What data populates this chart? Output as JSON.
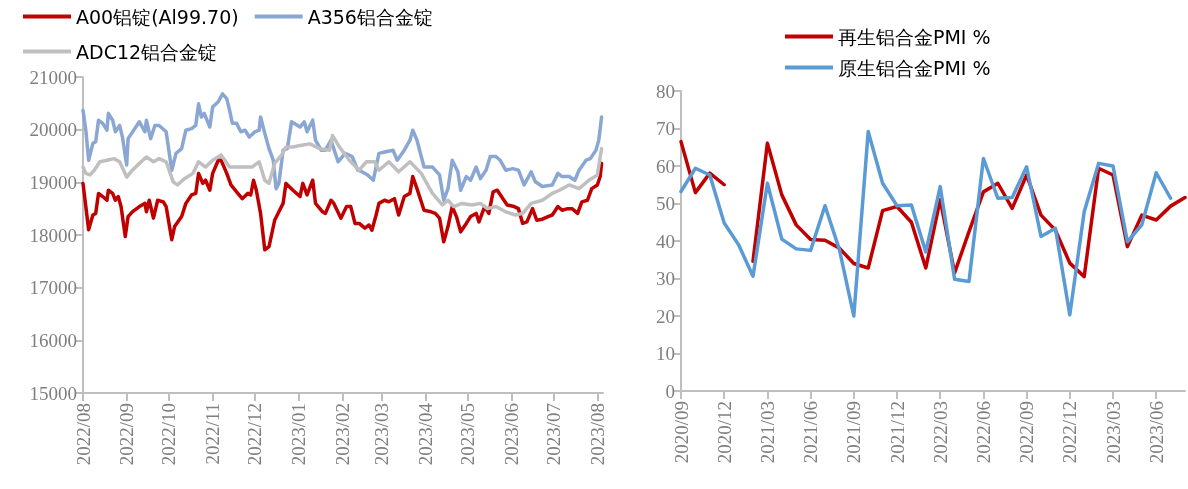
{
  "chart_data": [
    {
      "type": "line",
      "legend": "top",
      "marker": "none",
      "xlim": [
        "2022-08-01",
        "2023-08-05"
      ],
      "xticks": [
        {
          "value": "2022-08-01",
          "label": "2022/08"
        },
        {
          "value": "2022-09-01",
          "label": "2022/09"
        },
        {
          "value": "2022-10-01",
          "label": "2022/10"
        },
        {
          "value": "2022-11-01",
          "label": "2022/11"
        },
        {
          "value": "2022-12-01",
          "label": "2022/12"
        },
        {
          "value": "2023-01-01",
          "label": "2023/01"
        },
        {
          "value": "2023-02-01",
          "label": "2023/02"
        },
        {
          "value": "2023-03-01",
          "label": "2023/03"
        },
        {
          "value": "2023-04-01",
          "label": "2023/04"
        },
        {
          "value": "2023-05-01",
          "label": "2023/05"
        },
        {
          "value": "2023-06-01",
          "label": "2023/06"
        },
        {
          "value": "2023-07-01",
          "label": "2023/07"
        },
        {
          "value": "2023-08-01",
          "label": "2023/08"
        }
      ],
      "ylim": [
        15000,
        21000
      ],
      "yticks": [
        15000,
        16000,
        17000,
        18000,
        19000,
        20000,
        21000
      ],
      "series": [
        {
          "name": "A00铝锭(Al99.70)",
          "color": "#c00000",
          "x": [
            "2022-08-01",
            "2022-08-03",
            "2022-08-05",
            "2022-08-08",
            "2022-08-10",
            "2022-08-12",
            "2022-08-15",
            "2022-08-18",
            "2022-08-19",
            "2022-08-22",
            "2022-08-24",
            "2022-08-26",
            "2022-08-28",
            "2022-08-31",
            "2022-09-02",
            "2022-09-05",
            "2022-09-10",
            "2022-09-14",
            "2022-09-15",
            "2022-09-17",
            "2022-09-20",
            "2022-09-23",
            "2022-09-27",
            "2022-09-29",
            "2022-10-03",
            "2022-10-05",
            "2022-10-10",
            "2022-10-13",
            "2022-10-17",
            "2022-10-20",
            "2022-10-22",
            "2022-10-25",
            "2022-10-27",
            "2022-10-30",
            "2022-11-01",
            "2022-11-05",
            "2022-11-07",
            "2022-11-11",
            "2022-11-14",
            "2022-11-18",
            "2022-11-22",
            "2022-11-26",
            "2022-11-28",
            "2022-11-30",
            "2022-12-02",
            "2022-12-05",
            "2022-12-08",
            "2022-12-11",
            "2022-12-15",
            "2022-12-18",
            "2022-12-21",
            "2022-12-23",
            "2022-12-28",
            "2023-01-02",
            "2023-01-04",
            "2023-01-07",
            "2023-01-11",
            "2023-01-13",
            "2023-01-18",
            "2023-01-20",
            "2023-01-24",
            "2023-01-26",
            "2023-01-31",
            "2023-02-04",
            "2023-02-07",
            "2023-02-10",
            "2023-02-13",
            "2023-02-17",
            "2023-02-20",
            "2023-02-22",
            "2023-02-25",
            "2023-02-27",
            "2023-03-03",
            "2023-03-06",
            "2023-03-10",
            "2023-03-13",
            "2023-03-17",
            "2023-03-21",
            "2023-03-23",
            "2023-03-26",
            "2023-03-31",
            "2023-04-05",
            "2023-04-08",
            "2023-04-11",
            "2023-04-14",
            "2023-04-17",
            "2023-04-20",
            "2023-04-23",
            "2023-04-26",
            "2023-04-30",
            "2023-05-03",
            "2023-05-07",
            "2023-05-09",
            "2023-05-13",
            "2023-05-16",
            "2023-05-19",
            "2023-05-22",
            "2023-05-26",
            "2023-05-29",
            "2023-06-03",
            "2023-06-06",
            "2023-06-09",
            "2023-06-12",
            "2023-06-16",
            "2023-06-19",
            "2023-06-23",
            "2023-06-27",
            "2023-06-30",
            "2023-07-04",
            "2023-07-07",
            "2023-07-11",
            "2023-07-14",
            "2023-07-18",
            "2023-07-21",
            "2023-07-25",
            "2023-07-28",
            "2023-08-01",
            "2023-08-03",
            "2023-08-04"
          ],
          "values": [
            18980,
            18540,
            18100,
            18380,
            18410,
            18790,
            18730,
            18660,
            18850,
            18790,
            18660,
            18730,
            18540,
            17970,
            18350,
            18440,
            18540,
            18600,
            18440,
            18660,
            18320,
            18660,
            18630,
            18540,
            17910,
            18160,
            18350,
            18600,
            18760,
            18790,
            19170,
            18980,
            19040,
            18850,
            19170,
            19420,
            19420,
            19170,
            18950,
            18820,
            18690,
            18790,
            18760,
            19040,
            18850,
            18410,
            17720,
            17780,
            18280,
            18440,
            18600,
            18980,
            18850,
            18730,
            18980,
            18760,
            19040,
            18600,
            18440,
            18410,
            18660,
            18600,
            18320,
            18540,
            18540,
            18220,
            18220,
            18130,
            18190,
            18090,
            18380,
            18600,
            18660,
            18630,
            18690,
            18380,
            18730,
            18790,
            19110,
            18880,
            18470,
            18440,
            18410,
            18320,
            17870,
            18160,
            18540,
            18350,
            18060,
            18220,
            18350,
            18410,
            18250,
            18540,
            18410,
            18820,
            18850,
            18690,
            18570,
            18540,
            18500,
            18220,
            18250,
            18500,
            18280,
            18300,
            18350,
            18380,
            18540,
            18470,
            18500,
            18500,
            18410,
            18630,
            18660,
            18880,
            18950,
            19110,
            19360
          ]
        },
        {
          "name": "A356铝合金锭",
          "color": "#8aa6d2",
          "x": [
            "2022-08-01",
            "2022-08-03",
            "2022-08-05",
            "2022-08-08",
            "2022-08-10",
            "2022-08-12",
            "2022-08-15",
            "2022-08-18",
            "2022-08-19",
            "2022-08-22",
            "2022-08-24",
            "2022-08-27",
            "2022-08-29",
            "2022-09-01",
            "2022-09-02",
            "2022-09-10",
            "2022-09-14",
            "2022-09-15",
            "2022-09-18",
            "2022-09-21",
            "2022-09-24",
            "2022-09-29",
            "2022-10-03",
            "2022-10-06",
            "2022-10-10",
            "2022-10-13",
            "2022-10-17",
            "2022-10-20",
            "2022-10-22",
            "2022-10-24",
            "2022-10-26",
            "2022-10-30",
            "2022-11-01",
            "2022-11-05",
            "2022-11-08",
            "2022-11-11",
            "2022-11-13",
            "2022-11-15",
            "2022-11-18",
            "2022-11-21",
            "2022-11-24",
            "2022-11-27",
            "2022-12-01",
            "2022-12-04",
            "2022-12-05",
            "2022-12-08",
            "2022-12-11",
            "2022-12-14",
            "2022-12-16",
            "2022-12-18",
            "2022-12-21",
            "2022-12-24",
            "2022-12-27",
            "2023-01-02",
            "2023-01-05",
            "2023-01-07",
            "2023-01-11",
            "2023-01-13",
            "2023-01-17",
            "2023-01-20",
            "2023-01-24",
            "2023-01-29",
            "2023-02-03",
            "2023-02-08",
            "2023-02-12",
            "2023-02-15",
            "2023-02-19",
            "2023-02-23",
            "2023-02-27",
            "2023-03-04",
            "2023-03-09",
            "2023-03-12",
            "2023-03-17",
            "2023-03-21",
            "2023-03-23",
            "2023-03-26",
            "2023-03-31",
            "2023-04-06",
            "2023-04-11",
            "2023-04-14",
            "2023-04-17",
            "2023-04-20",
            "2023-04-24",
            "2023-04-26",
            "2023-04-30",
            "2023-05-03",
            "2023-05-07",
            "2023-05-10",
            "2023-05-14",
            "2023-05-17",
            "2023-05-21",
            "2023-05-24",
            "2023-05-28",
            "2023-06-02",
            "2023-06-06",
            "2023-06-10",
            "2023-06-15",
            "2023-06-18",
            "2023-06-23",
            "2023-06-30",
            "2023-07-04",
            "2023-07-07",
            "2023-07-12",
            "2023-07-16",
            "2023-07-19",
            "2023-07-24",
            "2023-07-27",
            "2023-07-31",
            "2023-08-02",
            "2023-08-04"
          ],
          "values": [
            20370,
            19990,
            19420,
            19740,
            19770,
            20180,
            20120,
            19990,
            20310,
            20180,
            19960,
            20080,
            19860,
            19330,
            19830,
            20150,
            19960,
            20180,
            19830,
            20080,
            20080,
            19960,
            19230,
            19550,
            19640,
            19990,
            20020,
            20080,
            20490,
            20240,
            20310,
            20050,
            20430,
            20530,
            20680,
            20590,
            20370,
            20120,
            20120,
            19960,
            19990,
            19860,
            19960,
            19990,
            20240,
            19930,
            19640,
            19420,
            18880,
            18980,
            19610,
            19640,
            20150,
            20050,
            20150,
            19960,
            20180,
            19800,
            19610,
            19610,
            19800,
            19390,
            19550,
            19490,
            19230,
            19200,
            19140,
            19040,
            19550,
            19580,
            19610,
            19420,
            19610,
            19800,
            19990,
            19800,
            19290,
            19290,
            19140,
            18660,
            18880,
            19420,
            19200,
            18850,
            19110,
            19040,
            19290,
            19070,
            19230,
            19490,
            19490,
            19420,
            19230,
            19260,
            19230,
            18950,
            19200,
            19010,
            18920,
            18950,
            19170,
            19110,
            19110,
            19040,
            19230,
            19420,
            19450,
            19610,
            19800,
            20240
          ]
        },
        {
          "name": "ADC12铝合金锭",
          "color": "#bfbfbf",
          "x": [
            "2022-08-01",
            "2022-08-03",
            "2022-08-06",
            "2022-08-09",
            "2022-08-13",
            "2022-08-18",
            "2022-08-23",
            "2022-08-27",
            "2022-09-01",
            "2022-09-05",
            "2022-09-10",
            "2022-09-15",
            "2022-09-20",
            "2022-09-24",
            "2022-09-29",
            "2022-10-04",
            "2022-10-07",
            "2022-10-12",
            "2022-10-18",
            "2022-10-22",
            "2022-10-27",
            "2022-11-01",
            "2022-11-07",
            "2022-11-13",
            "2022-11-20",
            "2022-11-29",
            "2022-12-04",
            "2022-12-08",
            "2022-12-11",
            "2022-12-15",
            "2022-12-20",
            "2022-12-23",
            "2022-12-28",
            "2023-01-02",
            "2023-01-09",
            "2023-01-16",
            "2023-01-23",
            "2023-01-25",
            "2023-01-30",
            "2023-02-06",
            "2023-02-13",
            "2023-02-18",
            "2023-02-24",
            "2023-02-27",
            "2023-03-06",
            "2023-03-13",
            "2023-03-21",
            "2023-03-29",
            "2023-04-06",
            "2023-04-13",
            "2023-04-17",
            "2023-04-21",
            "2023-04-27",
            "2023-05-04",
            "2023-05-10",
            "2023-05-15",
            "2023-05-21",
            "2023-05-28",
            "2023-06-04",
            "2023-06-09",
            "2023-06-15",
            "2023-06-23",
            "2023-06-30",
            "2023-07-05",
            "2023-07-12",
            "2023-07-19",
            "2023-07-26",
            "2023-08-01",
            "2023-08-03",
            "2023-08-04"
          ],
          "values": [
            19290,
            19170,
            19140,
            19230,
            19390,
            19420,
            19450,
            19390,
            19100,
            19230,
            19360,
            19480,
            19390,
            19450,
            19390,
            19010,
            18950,
            19070,
            19170,
            19390,
            19290,
            19420,
            19520,
            19290,
            19290,
            19290,
            19390,
            19040,
            18980,
            19360,
            19520,
            19670,
            19670,
            19700,
            19730,
            19640,
            19610,
            19890,
            19670,
            19420,
            19230,
            19390,
            19390,
            19230,
            19390,
            19200,
            19390,
            19170,
            18790,
            18570,
            18660,
            18540,
            18600,
            18570,
            18600,
            18500,
            18540,
            18440,
            18380,
            18410,
            18600,
            18660,
            18790,
            18850,
            18950,
            18880,
            19040,
            19140,
            19480,
            19640
          ]
        }
      ]
    },
    {
      "type": "line",
      "legend": "top",
      "marker": "none",
      "categories": [
        "2020/09",
        null,
        null,
        "2020/12",
        null,
        null,
        "2021/03",
        null,
        null,
        "2021/06",
        null,
        null,
        "2021/09",
        null,
        null,
        "2021/12",
        null,
        null,
        "2022/03",
        null,
        null,
        "2022/06",
        null,
        null,
        "2022/09",
        null,
        null,
        "2022/12",
        null,
        null,
        "2023/03",
        null,
        null,
        "2023/06",
        null,
        null
      ],
      "ylim": [
        0,
        80
      ],
      "yticks": [
        0,
        10,
        20,
        30,
        40,
        50,
        60,
        70,
        80
      ],
      "series": [
        {
          "name": "再生铝合金PMI %",
          "color": "#c00000",
          "values": [
            66.5,
            52.9,
            58.1,
            55,
            null,
            34.6,
            66.1,
            52.3,
            44.3,
            40.4,
            40.2,
            38.1,
            34,
            32.8,
            48.1,
            49.2,
            45,
            32.8,
            51,
            31.5,
            42.5,
            53.1,
            55.4,
            48.7,
            57.6,
            46.9,
            42.9,
            34.1,
            30.5,
            59.4,
            57.6,
            38.5,
            46.9,
            45.6,
            49.3,
            51.6
          ]
        },
        {
          "name": "原生铝合金PMI %",
          "color": "#5b9bd5",
          "values": [
            53.2,
            59.4,
            57.6,
            44.8,
            39,
            30.6,
            55.4,
            40.5,
            37.9,
            37.5,
            49.4,
            37.7,
            20,
            69.2,
            55.4,
            49.4,
            49.6,
            37.1,
            54.5,
            29.8,
            29.2,
            62,
            51.4,
            51.6,
            59.8,
            41.2,
            43.4,
            20.3,
            47.8,
            60.7,
            60,
            39.8,
            44.3,
            58.2,
            51.4,
            null
          ]
        }
      ]
    }
  ]
}
